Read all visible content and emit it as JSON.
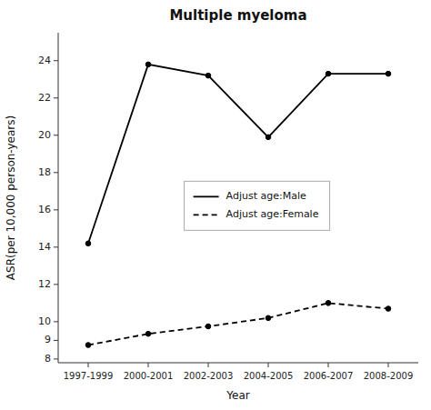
{
  "chart_data": {
    "type": "line",
    "title": "Multiple myeloma",
    "xlabel": "Year",
    "ylabel": "ASR(per 10,000 person-years)",
    "categories": [
      "1997-1999",
      "2000-2001",
      "2002-2003",
      "2004-2005",
      "2006-2007",
      "2008-2009"
    ],
    "series": [
      {
        "name": "Adjust age:Male",
        "color": "#000000",
        "line_style": "solid",
        "marker": "circle",
        "values": [
          14.2,
          23.8,
          23.2,
          19.9,
          23.3,
          23.3
        ]
      },
      {
        "name": "Adjust age:Female",
        "color": "#000000",
        "line_style": "dashed",
        "marker": "circle",
        "values": [
          8.75,
          9.35,
          9.75,
          10.2,
          11.0,
          10.7
        ]
      }
    ],
    "ylim": [
      7.8,
      25.5
    ],
    "yticks": [
      8,
      9,
      10,
      12,
      14,
      16,
      18,
      20,
      22,
      24
    ],
    "grid": false,
    "legend": "center"
  }
}
